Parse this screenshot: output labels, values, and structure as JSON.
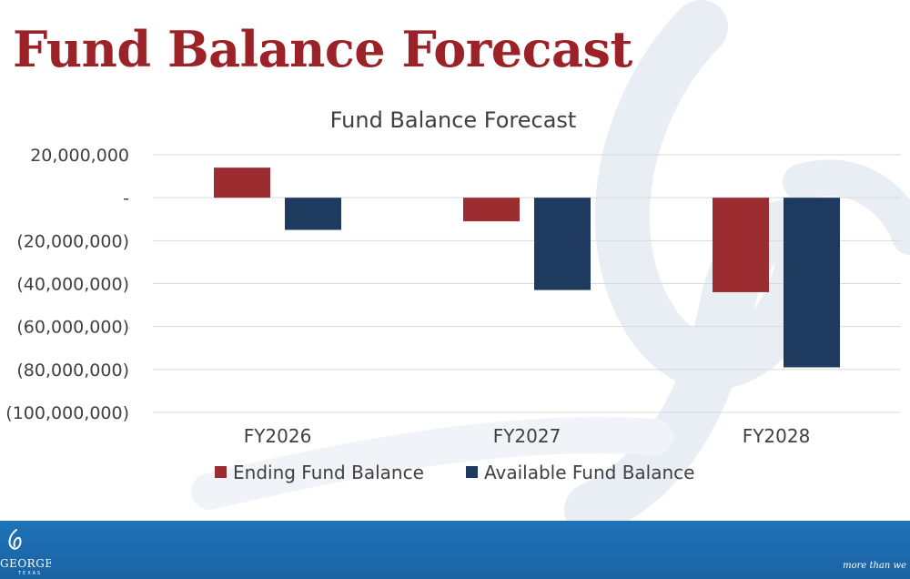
{
  "slide": {
    "title": "Fund Balance Forecast"
  },
  "footer": {
    "logo_text": "GEORGETOWN",
    "logo_subtext": "TEXAS",
    "tagline": "more than we"
  },
  "colors": {
    "title": "#9b2328",
    "ending_fund_balance": "#9b2c2f",
    "available_fund_balance": "#1f3a5f",
    "footer": "#1f73b8",
    "gridline": "#d9d9d9",
    "text": "#404040"
  },
  "chart_data": {
    "type": "bar",
    "title": "Fund Balance Forecast",
    "xlabel": "",
    "ylabel": "",
    "categories": [
      "FY2026",
      "FY2027",
      "FY2028"
    ],
    "series": [
      {
        "name": "Ending Fund Balance",
        "values": [
          14000000,
          -11000000,
          -44000000
        ]
      },
      {
        "name": "Available Fund Balance",
        "values": [
          -15000000,
          -43000000,
          -79000000
        ]
      }
    ],
    "ylim": [
      -100000000,
      20000000
    ],
    "yticks": [
      20000000,
      0,
      -20000000,
      -40000000,
      -60000000,
      -80000000,
      -100000000
    ],
    "ytick_labels": [
      "20,000,000",
      "-",
      "(20,000,000)",
      "(40,000,000)",
      "(60,000,000)",
      "(80,000,000)",
      "(100,000,000)"
    ],
    "grid": true,
    "legend_position": "bottom"
  }
}
